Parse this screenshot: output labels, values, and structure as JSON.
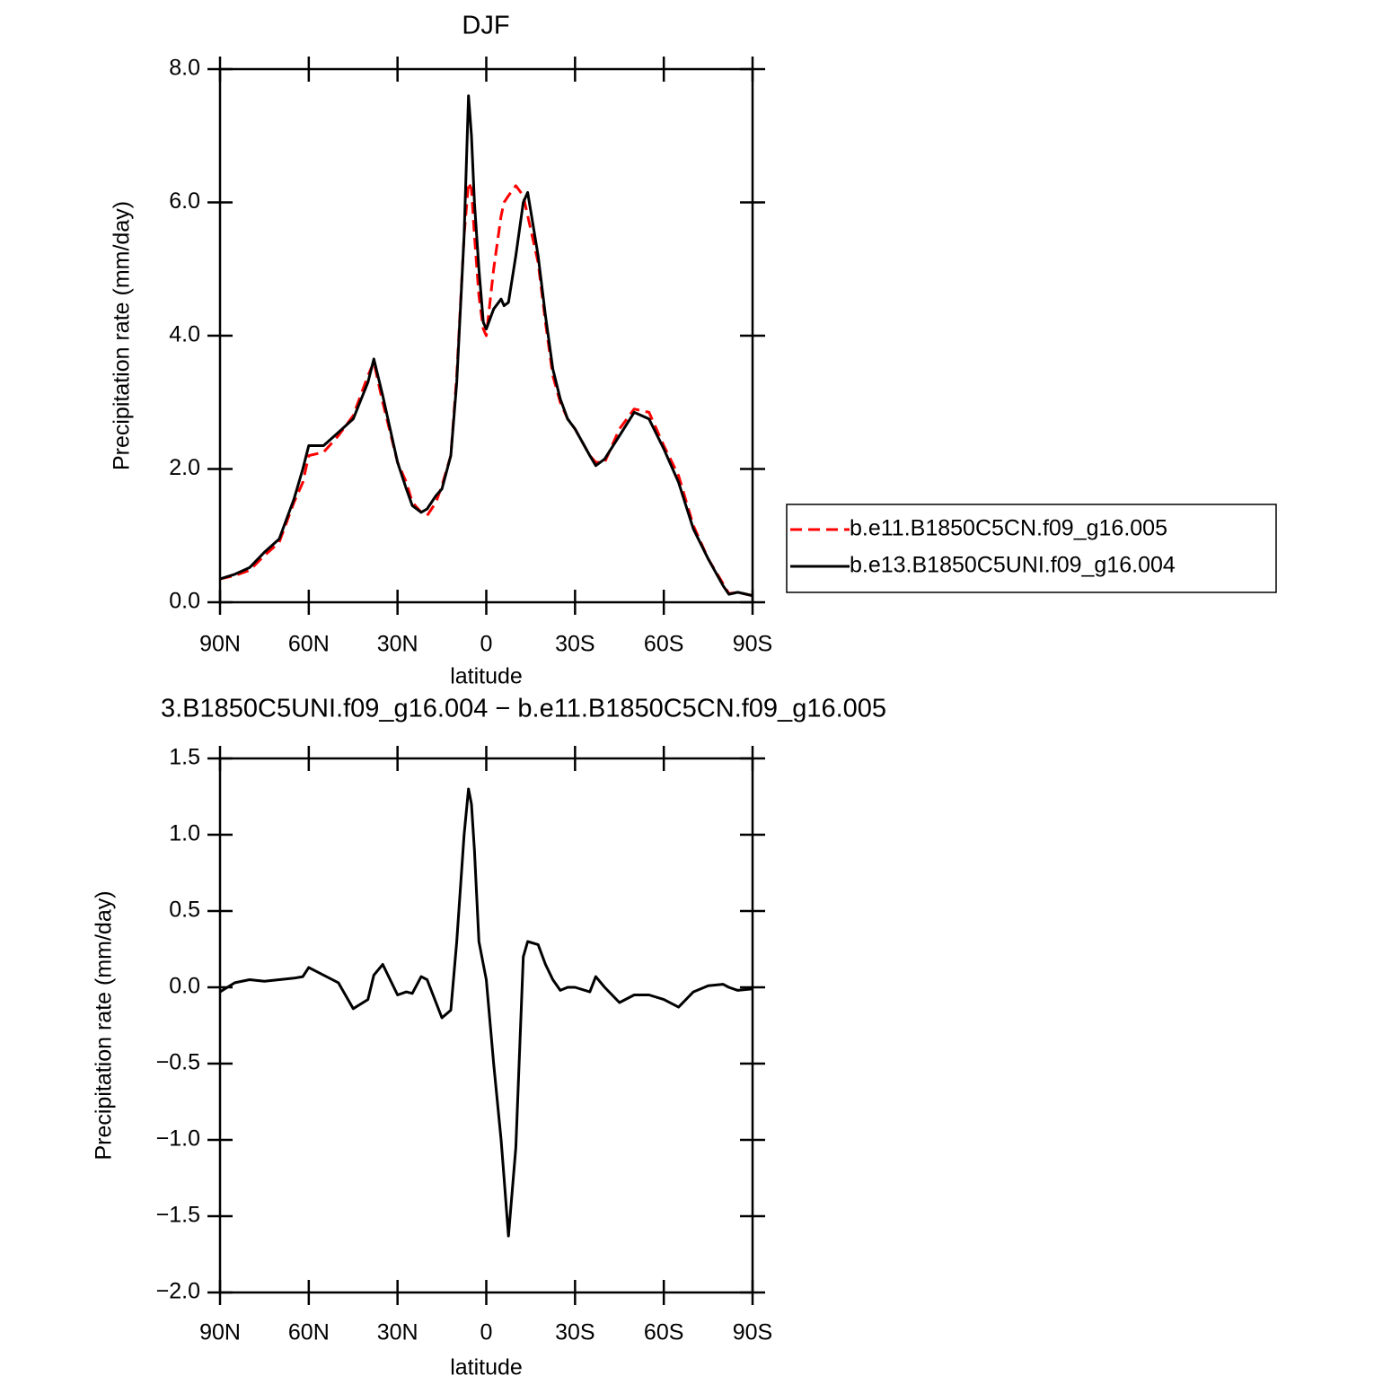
{
  "chart_data": [
    {
      "type": "line",
      "title": "DJF",
      "xlabel": "latitude",
      "ylabel": "Precipitation rate (mm/day)",
      "x": [
        90,
        85,
        80,
        75,
        70,
        65,
        62,
        60,
        55,
        50,
        45,
        40,
        38,
        35,
        30,
        27,
        25,
        22,
        20,
        17,
        15,
        12,
        10,
        7.5,
        6,
        5,
        4,
        2.5,
        1,
        0,
        -2.5,
        -5,
        -6,
        -7.5,
        -10,
        -12.5,
        -14,
        -17.5,
        -20,
        -22.5,
        -25,
        -27.5,
        -30,
        -35,
        -37,
        -40,
        -45,
        -50,
        -55,
        -60,
        -65,
        -70,
        -75,
        -80,
        -82,
        -85,
        -90
      ],
      "series": [
        {
          "name": "b.e11.B1850C5CN.f09_g16.005",
          "color": "#ff0000",
          "dash": true,
          "values": [
            0.35,
            0.4,
            0.48,
            0.7,
            0.9,
            1.5,
            1.8,
            2.2,
            2.25,
            2.5,
            2.8,
            3.4,
            3.6,
            3.0,
            2.1,
            1.8,
            1.5,
            1.35,
            1.3,
            1.5,
            1.75,
            2.2,
            3.4,
            5.5,
            6.3,
            6.2,
            5.5,
            4.6,
            4.1,
            4.0,
            5.0,
            5.8,
            6.0,
            6.1,
            6.25,
            6.1,
            5.8,
            5.1,
            4.2,
            3.4,
            3.0,
            2.75,
            2.6,
            2.2,
            2.1,
            2.1,
            2.6,
            2.9,
            2.85,
            2.35,
            1.9,
            1.15,
            0.65,
            0.28,
            0.13,
            0.15,
            0.1
          ]
        },
        {
          "name": "b.e13.B1850C5UNI.f09_g16.004",
          "color": "#000000",
          "dash": false,
          "values": [
            0.35,
            0.42,
            0.52,
            0.75,
            0.95,
            1.55,
            2.0,
            2.35,
            2.35,
            2.55,
            2.75,
            3.3,
            3.65,
            3.1,
            2.1,
            1.7,
            1.45,
            1.35,
            1.4,
            1.6,
            1.7,
            2.2,
            3.3,
            5.5,
            7.6,
            7.0,
            6.0,
            5.0,
            4.2,
            4.1,
            4.4,
            4.55,
            4.45,
            4.5,
            5.2,
            6.0,
            6.15,
            5.2,
            4.3,
            3.5,
            3.05,
            2.75,
            2.6,
            2.2,
            2.05,
            2.15,
            2.5,
            2.85,
            2.75,
            2.3,
            1.8,
            1.1,
            0.65,
            0.25,
            0.12,
            0.15,
            0.1
          ]
        }
      ],
      "xlim": [
        90,
        -90
      ],
      "xticks": [
        {
          "value": 90,
          "label": "90N"
        },
        {
          "value": 60,
          "label": "60N"
        },
        {
          "value": 30,
          "label": "30N"
        },
        0,
        {
          "value": -30,
          "label": "30S"
        },
        {
          "value": -60,
          "label": "60S"
        },
        {
          "value": -90,
          "label": "90S"
        }
      ],
      "ylim": [
        0,
        8
      ],
      "yticks": [
        {
          "value": 0,
          "label": "0.0"
        },
        {
          "value": 2,
          "label": "2.0"
        },
        {
          "value": 4,
          "label": "4.0"
        },
        {
          "value": 6,
          "label": "6.0"
        },
        {
          "value": 8,
          "label": "8.0"
        }
      ],
      "legend": "right"
    },
    {
      "type": "line",
      "title": "3.B1850C5UNI.f09_g16.004 − b.e11.B1850C5CN.f09_g16.005",
      "xlabel": "latitude",
      "ylabel": "Precipitation rate (mm/day)",
      "x": [
        90,
        85,
        80,
        75,
        70,
        65,
        62,
        60,
        55,
        50,
        45,
        40,
        38,
        35,
        30,
        27,
        25,
        22,
        20,
        17,
        15,
        12,
        10,
        7.5,
        6,
        5,
        4,
        2.5,
        1,
        0,
        -2.5,
        -5,
        -6,
        -7.5,
        -10,
        -12.5,
        -14,
        -17.5,
        -20,
        -22.5,
        -25,
        -27.5,
        -30,
        -35,
        -37,
        -40,
        -45,
        -50,
        -55,
        -60,
        -65,
        -70,
        -75,
        -80,
        -82,
        -85,
        -90
      ],
      "series": [
        {
          "color": "#000000",
          "dash": false,
          "values": [
            -0.03,
            0.03,
            0.05,
            0.04,
            0.05,
            0.06,
            0.07,
            0.13,
            0.08,
            0.03,
            -0.14,
            -0.08,
            0.08,
            0.15,
            -0.05,
            -0.03,
            -0.04,
            0.07,
            0.05,
            -0.1,
            -0.2,
            -0.15,
            0.3,
            1.0,
            1.3,
            1.2,
            0.9,
            0.3,
            0.15,
            0.05,
            -0.5,
            -1.0,
            -1.25,
            -1.63,
            -1.05,
            0.2,
            0.3,
            0.28,
            0.15,
            0.05,
            -0.02,
            0.0,
            0.0,
            -0.03,
            0.07,
            0.0,
            -0.1,
            -0.05,
            -0.05,
            -0.08,
            -0.13,
            -0.03,
            0.01,
            0.02,
            0.0,
            -0.02,
            -0.01
          ]
        }
      ],
      "xlim": [
        90,
        -90
      ],
      "xticks": [
        {
          "value": 90,
          "label": "90N"
        },
        {
          "value": 60,
          "label": "60N"
        },
        {
          "value": 30,
          "label": "30N"
        },
        0,
        {
          "value": -30,
          "label": "30S"
        },
        {
          "value": -60,
          "label": "60S"
        },
        {
          "value": -90,
          "label": "90S"
        }
      ],
      "ylim": [
        -2,
        1.5
      ],
      "yticks": [
        {
          "value": -2,
          "label": "−2.0"
        },
        {
          "value": -1.5,
          "label": "−1.5"
        },
        {
          "value": -1,
          "label": "−1.0"
        },
        {
          "value": -0.5,
          "label": "−0.5"
        },
        {
          "value": 0,
          "label": "0.0"
        },
        0.5,
        {
          "value": 1,
          "label": "1.0"
        },
        1.5
      ]
    }
  ]
}
